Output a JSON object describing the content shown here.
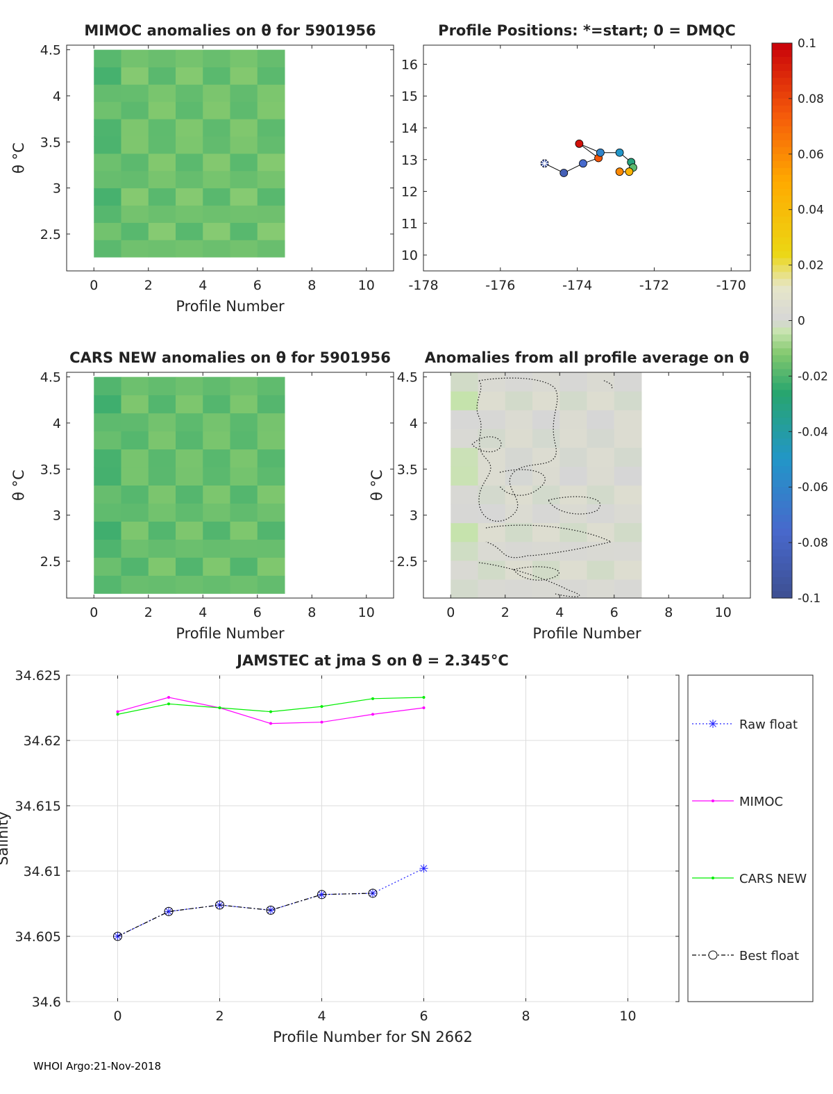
{
  "footer": "WHOI Argo:21-Nov-2018",
  "theta_symbol": "θ",
  "chart_data": [
    {
      "id": "mimoc",
      "type": "heatmap",
      "title": "MIMOC anomalies on θ  for 5901956",
      "xlabel": "Profile Number",
      "ylabel": "θ °C",
      "xlim": [
        -1,
        11
      ],
      "ylim": [
        2.1,
        4.55
      ],
      "xticks": [
        "0",
        "2",
        "4",
        "6",
        "8",
        "10"
      ],
      "yticks": [
        "2.5",
        "3",
        "3.5",
        "4",
        "4.5"
      ],
      "profiles": [
        0,
        1,
        2,
        3,
        4,
        5,
        6
      ],
      "fill_value": -0.015
    },
    {
      "id": "positions",
      "type": "scatter",
      "title": "Profile Positions: *=start; 0 = DMQC",
      "xlabel": "",
      "ylabel": "",
      "xlim": [
        -178,
        -169.5
      ],
      "ylim": [
        9.5,
        16.6
      ],
      "xticks": [
        "-178",
        "-176",
        "-174",
        "-172",
        "-170"
      ],
      "yticks": [
        "10",
        "11",
        "12",
        "13",
        "14",
        "15",
        "16"
      ],
      "start_marker": "*",
      "points": [
        {
          "lon": -174.85,
          "lat": 12.88,
          "c": -0.09
        },
        {
          "lon": -174.35,
          "lat": 12.58,
          "c": -0.085
        },
        {
          "lon": -173.85,
          "lat": 12.88,
          "c": -0.075
        },
        {
          "lon": -173.45,
          "lat": 13.05,
          "c": 0.075
        },
        {
          "lon": -173.95,
          "lat": 13.5,
          "c": 0.095
        },
        {
          "lon": -173.4,
          "lat": 13.22,
          "c": -0.06
        },
        {
          "lon": -172.9,
          "lat": 13.22,
          "c": -0.05
        },
        {
          "lon": -172.6,
          "lat": 12.92,
          "c": -0.03
        },
        {
          "lon": -172.55,
          "lat": 12.75,
          "c": -0.018
        },
        {
          "lon": -172.65,
          "lat": 12.62,
          "c": 0.045
        },
        {
          "lon": -172.9,
          "lat": 12.62,
          "c": 0.06
        }
      ]
    },
    {
      "id": "cars",
      "type": "heatmap",
      "title": "CARS NEW anomalies on θ for 5901956",
      "xlabel": "Profile Number",
      "ylabel": "θ °C",
      "xlim": [
        -1,
        11
      ],
      "ylim": [
        2.1,
        4.55
      ],
      "xticks": [
        "0",
        "2",
        "4",
        "6",
        "8",
        "10"
      ],
      "yticks": [
        "2.5",
        "3",
        "3.5",
        "4",
        "4.5"
      ],
      "profiles": [
        0,
        1,
        2,
        3,
        4,
        5,
        6
      ],
      "fill_value": -0.016
    },
    {
      "id": "allavg",
      "type": "heatmap",
      "title": "Anomalies from all profile average on θ",
      "xlabel": "Profile Number",
      "ylabel": "θ °C",
      "xlim": [
        -1,
        11
      ],
      "ylim": [
        2.1,
        4.55
      ],
      "xticks": [
        "0",
        "2",
        "4",
        "6",
        "8",
        "10"
      ],
      "yticks": [
        "2.5",
        "3",
        "3.5",
        "4",
        "4.5"
      ],
      "profiles": [
        0,
        1,
        2,
        3,
        4,
        5,
        6
      ],
      "fill_value": 0.002
    },
    {
      "id": "colorbar",
      "type": "heatmap",
      "range": [
        -0.1,
        0.1
      ],
      "ticks": [
        "-0.1",
        "-0.08",
        "-0.06",
        "-0.04",
        "-0.02",
        "0",
        "0.02",
        "0.04",
        "0.06",
        "0.08",
        "0.1"
      ]
    },
    {
      "id": "salinity",
      "type": "line",
      "title": "JAMSTEC at jma S on θ = 2.345°C",
      "xlabel": "Profile Number for SN 2662",
      "ylabel": "Salinity",
      "xlim": [
        -1,
        11
      ],
      "ylim": [
        34.6,
        34.625
      ],
      "grid": true,
      "xticks": [
        "0",
        "2",
        "4",
        "6",
        "8",
        "10"
      ],
      "yticks": [
        "34.6",
        "34.605",
        "34.61",
        "34.615",
        "34.62",
        "34.625"
      ],
      "x": [
        0,
        1,
        2,
        3,
        4,
        5,
        6
      ],
      "legend_position": "outside-right",
      "series": [
        {
          "name": "Raw float",
          "color": "#2222ff",
          "values": [
            34.605,
            34.6069,
            34.6074,
            34.607,
            34.6082,
            34.6083,
            34.6102
          ]
        },
        {
          "name": "MIMOC",
          "color": "#ff00ff",
          "values": [
            34.6222,
            34.6233,
            34.6225,
            34.6213,
            34.6214,
            34.622,
            34.6225
          ]
        },
        {
          "name": "CARS NEW",
          "color": "#00ee00",
          "values": [
            34.622,
            34.6228,
            34.6225,
            34.6222,
            34.6226,
            34.6232,
            34.6233
          ]
        },
        {
          "name": "Best float",
          "color": "#000000",
          "values": [
            34.605,
            34.6069,
            34.6074,
            34.607,
            34.6082,
            34.6083,
            null
          ]
        }
      ]
    }
  ]
}
